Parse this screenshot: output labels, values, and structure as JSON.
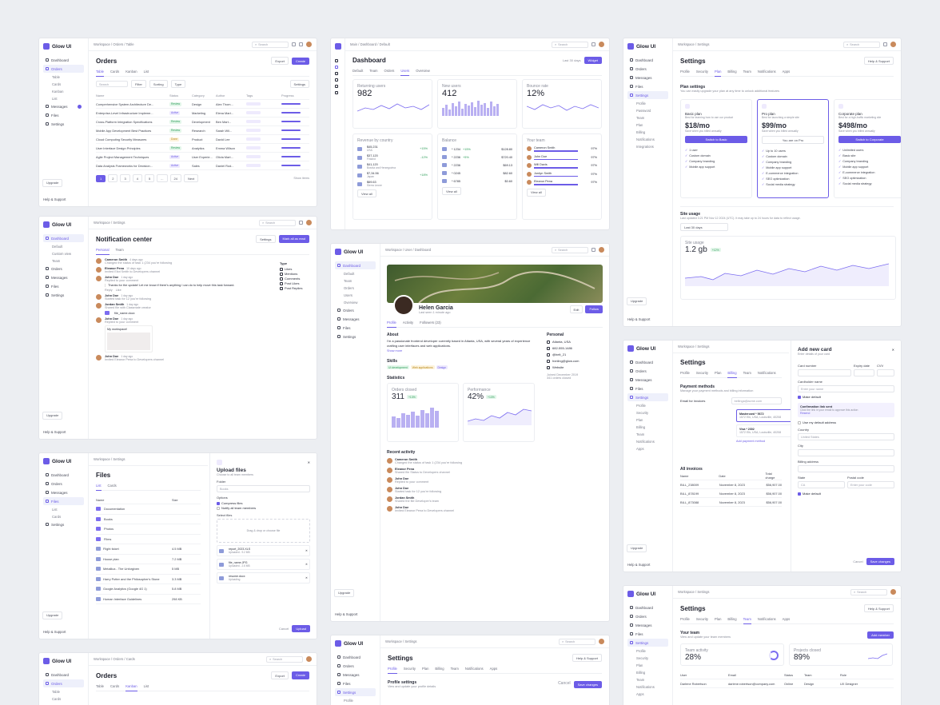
{
  "brand": {
    "name": "Glow UI",
    "accent": "#6c5ce7"
  },
  "orders_table": {
    "nav": [
      "Dashboard",
      "Orders",
      "Table",
      "Cards",
      "Kanban",
      "List",
      "Messages",
      "Files",
      "Settings"
    ],
    "breadcrumb": [
      "Workspace",
      "Orders",
      "Table"
    ],
    "search_placeholder": "Search",
    "title": "Orders",
    "export_label": "Export",
    "create_label": "Create",
    "tabs": [
      "Table",
      "Cards",
      "Kanban",
      "List"
    ],
    "toolbar": {
      "search": "Search",
      "filter": "Filter",
      "sorting": "Sorting",
      "type": "Type",
      "settings": "Settings"
    },
    "columns": [
      "Name",
      "Status",
      "Category",
      "Author",
      "Tags",
      "Progress"
    ],
    "rows": [
      {
        "name": "Comprehensive System Architecture De...",
        "status": "Review",
        "category": "Design",
        "author": "Alex Thom..."
      },
      {
        "name": "Enterprise-Level Infrastructure Impleme...",
        "status": "Active",
        "category": "Marketing",
        "author": "Elena Mart..."
      },
      {
        "name": "Cross-Platform Integration Specifications",
        "status": "Review",
        "category": "Development",
        "author": "Ben Mart..."
      },
      {
        "name": "Mobile App Development Best Practices",
        "status": "Review",
        "category": "Research",
        "author": "Sarah Wil..."
      },
      {
        "name": "Cloud Computing Security Measures",
        "status": "Done",
        "category": "Product",
        "author": "David Lee"
      },
      {
        "name": "User Interface Design Principles",
        "status": "Review",
        "category": "Analytics",
        "author": "Emma Wilson"
      },
      {
        "name": "Agile Project Management Techniques",
        "status": "Active",
        "category": "User Experie...",
        "author": "Olivia Mart..."
      },
      {
        "name": "Data Analysis Frameworks for Decision...",
        "status": "Active",
        "category": "Sales",
        "author": "Daniel Rod..."
      }
    ],
    "pages": [
      "1",
      "2",
      "3",
      "4",
      "5",
      "...",
      "24"
    ],
    "next": "Next",
    "show_items": "Show items",
    "help": "Help & Support",
    "upgrade": "Upgrade"
  },
  "dashboard": {
    "nav": [
      "Dashboard",
      "Default",
      "Team",
      "Orders",
      "Users",
      "Overview"
    ],
    "breadcrumb": [
      "Main",
      "Dashboard",
      "Default"
    ],
    "title": "Dashboard",
    "range": "Last 30 days",
    "widget": "Widget",
    "tabs": [
      "Default",
      "Team",
      "Orders",
      "Users",
      "Overview"
    ],
    "kpis": [
      {
        "label": "Returning users",
        "value": "982"
      },
      {
        "label": "New users",
        "value": "412"
      },
      {
        "label": "Bounce rate",
        "value": "12%"
      }
    ],
    "months": [
      "Mar",
      "Tue",
      "Wed",
      "Thu",
      "Fri",
      "Sat",
      "Sun"
    ],
    "revenue_title": "Revenue by country",
    "countries": [
      {
        "amount": "$45,231",
        "name": "USA",
        "delta": "+15%"
      },
      {
        "amount": "$37,120",
        "name": "Finland",
        "delta": "-12%"
      },
      {
        "amount": "$41,120",
        "name": "Bosnia and Herzegovina",
        "delta": ""
      },
      {
        "amount": "$7,34.56",
        "name": "Japan",
        "delta": "+18%"
      },
      {
        "amount": "$69.63",
        "name": "Sierra Leone",
        "delta": ""
      }
    ],
    "balance_title": "Balance",
    "balances": [
      {
        "card": "* 1234",
        "delta": "+15%",
        "amount": "$128.80"
      },
      {
        "card": "* 2236",
        "delta": "+5%",
        "amount": "$720.40"
      },
      {
        "card": "* 2236",
        "delta": "",
        "amount": "$69.13"
      },
      {
        "card": "* 0245",
        "delta": "",
        "amount": "$82.60"
      },
      {
        "card": "* 6785",
        "delta": "",
        "amount": "$0.60"
      }
    ],
    "team_title": "Your team",
    "team": [
      {
        "name": "Cameron Smith",
        "pct": "97%"
      },
      {
        "name": "John Doe",
        "pct": "97%"
      },
      {
        "name": "Will Davis",
        "pct": "97%"
      },
      {
        "name": "Jordyn Smith",
        "pct": "97%"
      },
      {
        "name": "Eleanor Pena",
        "pct": "97%"
      }
    ],
    "view_all": "View all"
  },
  "settings_plan": {
    "nav": [
      "Dashboard",
      "Orders",
      "Messages",
      "Files",
      "Settings",
      "Profile",
      "Password",
      "Team",
      "Plan",
      "Billing",
      "Notifications",
      "Integrations"
    ],
    "breadcrumb": [
      "Workspace",
      "Settings"
    ],
    "title": "Settings",
    "help": "Help & Support",
    "tabs": [
      "Profile",
      "Security",
      "Plan",
      "Billing",
      "Team",
      "Notifications",
      "Apps"
    ],
    "section": "Plan settings",
    "section_sub": "You can easily upgrade your plan at any time to unlock additional features",
    "plans": [
      {
        "name": "Basic plan",
        "desc": "Best for learning how to use our product",
        "price": "$18/mo",
        "note": "Save when you billed annually",
        "cta": "Switch to Basic",
        "features": [
          "1 user",
          "Custom domain",
          "Company branding",
          "Mobile app support"
        ]
      },
      {
        "name": "Pro plan",
        "desc": "Best for launching a simple site",
        "price": "$99/mo",
        "note": "Save when you billed annually",
        "cta": "You are on Pro",
        "features": [
          "Up to 10 users",
          "Custom domain",
          "Company branding",
          "Mobile app support",
          "E-commerce integration",
          "SEO optimization",
          "Social media strategy"
        ]
      },
      {
        "name": "Corporate plan",
        "desc": "Best for a high-traffic marketing site",
        "price": "$498/mo",
        "note": "Save when you billed annually",
        "cta": "Switch to Corporate",
        "features": [
          "Unlimited users",
          "Basic site",
          "Company branding",
          "Mobile app support",
          "E-commerce integration",
          "SEO optimization",
          "Social media strategy"
        ]
      }
    ],
    "usage_title": "Site usage",
    "usage_sub": "Last updated 3:21 PM Nov 12 2024 (UTC). It may take up to 24 hours for data to reflect usage.",
    "usage_range": "Last 30 days",
    "usage_label": "Site usage",
    "usage_value": "1.2 gb",
    "usage_delta": "+12%",
    "upgrade": "Upgrade"
  },
  "notifications": {
    "nav": [
      "Dashboard",
      "Default",
      "Custom view",
      "Team",
      "Orders",
      "Messages",
      "Files",
      "Settings"
    ],
    "breadcrumb": [
      "Workspace",
      "Settings"
    ],
    "title": "Notification center",
    "settings": "Settings",
    "mark_all": "Mark all as read",
    "tabs": [
      "Personal",
      "Team"
    ],
    "filter_title": "Type",
    "filters": [
      "Likes",
      "Mentions",
      "Comments",
      "Post Likes",
      "Post Replies"
    ],
    "items": [
      {
        "name": "Cameron Smith",
        "text": "Changed the status of task 1 (234 you're following",
        "time": "4 days ago"
      },
      {
        "name": "Eleanor Pena",
        "text": "Invited Eliot Smith to Developers channel",
        "time": "10 days ago"
      },
      {
        "name": "John Doe",
        "text": "Replied to your comment",
        "time": "1 day ago"
      },
      {
        "name": "John Doe",
        "text": "Started task for 12 you're following",
        "time": "1 day ago"
      },
      {
        "name": "Jordan Smith",
        "text": "Shared file with Classmate creator",
        "time": "1 day ago"
      },
      {
        "name": "John Doe",
        "text": "Replied to your comment",
        "time": "1 day ago"
      },
      {
        "name": "John Doe",
        "text": "Invited Eleanor Pena to Developers channel",
        "time": "1 day ago"
      }
    ],
    "quote": "Thanks for the update! Let me know if there's anything I can do to help move this task forward.",
    "reply": "Reply",
    "like": "Like",
    "file_name": "file_name.docx",
    "workspace": "My workspace!",
    "help": "Help & Support",
    "upgrade": "Upgrade"
  },
  "profile": {
    "nav": [
      "Dashboard",
      "Default",
      "Team",
      "Orders",
      "Users",
      "Overview",
      "Orders",
      "Messages",
      "Files",
      "Settings"
    ],
    "breadcrumb": [
      "Workspace",
      "User",
      "Dashboard"
    ],
    "name": "Helen Garcia",
    "last_seen": "Last seen 1 minute ago",
    "edit": "Edit",
    "follow": "Follow",
    "tabs": [
      "Profile",
      "Activity",
      "Followers (23)"
    ],
    "about_title": "About",
    "about": "I'm a passionate frontend developer currently based in Atlanta, USA, with several years of experience crafting user interfaces and web applications.",
    "show_more": "Show more",
    "personal_title": "Personal",
    "personal": [
      "Atlanta, USA",
      "682-555-1486",
      "@helt_21",
      "hxnling@glow.com",
      "Website"
    ],
    "joined": "Joined December 2019",
    "orders": "341 orders closed",
    "skills_title": "Skills",
    "skills": [
      "UI development",
      "Web applications",
      "Design"
    ],
    "stats_title": "Statistics",
    "stat1_label": "Orders closed",
    "stat1": "311",
    "stat1_delta": "+13%",
    "stat2_label": "Performance",
    "stat2": "42%",
    "stat2_delta": "+13%",
    "activity_title": "Recent activity",
    "activities": [
      {
        "name": "Cameron Smith",
        "text": "Changed the status of task 1 (234 you're following"
      },
      {
        "name": "Eleanor Pena",
        "text": "Shared file Status to Developers channel"
      },
      {
        "name": "John Doe",
        "text": "Replied to your comment"
      },
      {
        "name": "John Doe",
        "text": "Started task for 12 you're following"
      },
      {
        "name": "Jordan Smith",
        "text": "Shared the file Developer's team"
      },
      {
        "name": "John Doe",
        "text": "Invited Eleanor Pena to Developers channel"
      }
    ],
    "help": "Help & Support",
    "upgrade": "Upgrade"
  },
  "files": {
    "nav": [
      "Dashboard",
      "Orders",
      "Messages",
      "Files",
      "List",
      "Cards",
      "Settings"
    ],
    "breadcrumb": [
      "Workspace",
      "Settings"
    ],
    "title": "Files",
    "tabs": [
      "List",
      "Cards"
    ],
    "columns": [
      "Name",
      "Size"
    ],
    "rows": [
      {
        "name": "Documentation",
        "size": ""
      },
      {
        "name": "Books",
        "size": ""
      },
      {
        "name": "Photos",
        "size": ""
      },
      {
        "name": "Films",
        "size": ""
      },
      {
        "name": "Flight ticket",
        "size": "4.5 MB"
      },
      {
        "name": "House plan",
        "size": "7.2 MB"
      },
      {
        "name": "Metallica - The Unforgiven",
        "size": "5 MB"
      },
      {
        "name": "Harry Potter and the Philosopher's Stone",
        "size": "3.3 MB"
      },
      {
        "name": "Google Analytics (Google 4G 1)",
        "size": "5.8 MB"
      },
      {
        "name": "Human Interface Guidelines",
        "size": "298 KB"
      }
    ],
    "upload_title": "Upload files",
    "upload_sub": "Choose to all team members",
    "folder_label": "Folder",
    "folder_value": "Books",
    "options_label": "Options",
    "opt1": "Compress files",
    "opt2": "Notify all team members",
    "select_label": "Select files",
    "drop_text": "Drag & drop or choose file",
    "uploads": [
      {
        "name": "report_2023.XLS",
        "meta": "Uploaded - 9.2 MB"
      },
      {
        "name": "file_name.JPG",
        "meta": "Uploaded - 2.6 MB"
      },
      {
        "name": "resume.docx",
        "meta": "Uploading"
      }
    ],
    "cancel": "Cancel",
    "upload": "Upload",
    "help": "Help & Support",
    "upgrade": "Upgrade"
  },
  "billing": {
    "nav": [
      "Dashboard",
      "Orders",
      "Messages",
      "Files",
      "Settings",
      "Profile",
      "Security",
      "Plan",
      "Billing",
      "Team",
      "Notifications",
      "Apps"
    ],
    "breadcrumb": [
      "Workspace",
      "Settings"
    ],
    "title": "Settings",
    "tabs": [
      "Profile",
      "Security",
      "Plan",
      "Billing",
      "Team",
      "Notifications"
    ],
    "pm_title": "Payment methods",
    "pm_sub": "Manage your payment methods and billing information",
    "email_label": "Email for invoices",
    "email_value": "bellinga@acme.com",
    "cards": [
      {
        "name": "Mastercard * 5672",
        "addr": "1572 Elk, USA, Louisville, 40208"
      },
      {
        "name": "Visa * 2302",
        "addr": "1572 Elk, USA, Louisville, 40208"
      }
    ],
    "add_pm": "Add payment method",
    "invoices_title": "All invoices",
    "invoice_cols": [
      "Name",
      "Date",
      "Total charge"
    ],
    "invoices": [
      {
        "name": "BILL_238009",
        "date": "November 8, 2023",
        "total": "$56,907.00"
      },
      {
        "name": "BILL_878199",
        "date": "November 8, 2023",
        "total": "$56,907.00"
      },
      {
        "name": "BILL_873088",
        "date": "November 8, 2023",
        "total": "$56,907.00"
      }
    ],
    "modal_title": "Add new card",
    "modal_sub": "Enter details of your card",
    "card_number": "Card number",
    "expiry": "Expiry date",
    "cvv": "CVV",
    "holder": "Cardholder name",
    "holder_ph": "Enter your name",
    "make_default": "Make default",
    "confirm": "Confirmation link sent",
    "confirm_sub": "Click the link in your email to approve this action",
    "resend": "Resend",
    "use_default": "Use my default address",
    "country": "Country",
    "country_value": "United States",
    "city": "City",
    "billing_address": "Billing address",
    "state": "State",
    "state_value": "CA",
    "postal": "Postal code",
    "postal_ph": "Enter your code",
    "cancel": "Cancel",
    "save": "Save changes",
    "help": "Help & Support",
    "upgrade": "Upgrade"
  },
  "cards_view": {
    "nav": [
      "Dashboard",
      "Orders",
      "Table",
      "Cards",
      "Kanban"
    ],
    "breadcrumb": [
      "Workspace",
      "Orders",
      "Cards"
    ],
    "title": "Orders",
    "tabs": [
      "Table",
      "Cards",
      "Kanban",
      "List"
    ],
    "export": "Export",
    "create": "Create"
  },
  "profile_settings": {
    "nav": [
      "Dashboard",
      "Orders",
      "Messages",
      "Files",
      "Settings",
      "Profile",
      "Security"
    ],
    "breadcrumb": [
      "Workspace",
      "Settings"
    ],
    "title": "Settings",
    "tabs": [
      "Profile",
      "Security",
      "Plan",
      "Billing",
      "Team",
      "Notifications",
      "Apps"
    ],
    "help": "Help & Support",
    "section": "Profile settings",
    "section_sub": "View and update your profile details",
    "cancel": "Cancel",
    "save": "Save changes"
  },
  "team_settings": {
    "nav": [
      "Dashboard",
      "Orders",
      "Messages",
      "Files",
      "Settings",
      "Profile",
      "Security",
      "Plan",
      "Billing",
      "Team",
      "Notifications",
      "Apps"
    ],
    "breadcrumb": [
      "Workspace",
      "Settings"
    ],
    "title": "Settings",
    "help": "Help & Support",
    "tabs": [
      "Profile",
      "Security",
      "Plan",
      "Billing",
      "Team",
      "Notifications",
      "Apps"
    ],
    "section": "Your team",
    "section_sub": "View and update your team members",
    "add": "Add member",
    "kpi1_label": "Team activity",
    "kpi1": "28%",
    "kpi2_label": "Projects closed",
    "kpi2": "89%",
    "cols": [
      "User",
      "Email",
      "Status",
      "Team",
      "Role"
    ],
    "member": {
      "name": "Darlene Robertson",
      "email": "darlene.robertson@company.com",
      "status": "Online",
      "team": "Design",
      "role": "UX Designer"
    }
  }
}
